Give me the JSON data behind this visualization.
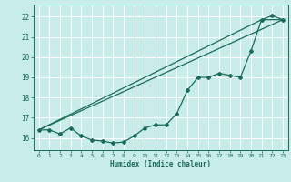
{
  "bg_color": "#c8ece9",
  "grid_color": "#ffffff",
  "line_color": "#1a6b5a",
  "xlabel": "Humidex (Indice chaleur)",
  "xlim": [
    -0.5,
    23.5
  ],
  "ylim": [
    15.4,
    22.6
  ],
  "yticks": [
    16,
    17,
    18,
    19,
    20,
    21,
    22
  ],
  "xticks": [
    0,
    1,
    2,
    3,
    4,
    5,
    6,
    7,
    8,
    9,
    10,
    11,
    12,
    13,
    14,
    15,
    16,
    17,
    18,
    19,
    20,
    21,
    22,
    23
  ],
  "line1_x": [
    0,
    1,
    2,
    3,
    4,
    5,
    6,
    7,
    8,
    9,
    10,
    11,
    12,
    13,
    14,
    15,
    16,
    17,
    18,
    19,
    20,
    21,
    22,
    23
  ],
  "line1_y": [
    16.4,
    16.4,
    16.2,
    16.5,
    16.1,
    15.9,
    15.85,
    15.75,
    15.8,
    16.1,
    16.5,
    16.65,
    16.65,
    17.2,
    18.35,
    19.0,
    19.0,
    19.2,
    19.1,
    19.0,
    20.3,
    21.85,
    22.05,
    21.85
  ],
  "line2_x": [
    0,
    23
  ],
  "line2_y": [
    16.4,
    21.85
  ],
  "line3_x": [
    0,
    21,
    23
  ],
  "line3_y": [
    16.4,
    21.85,
    21.85
  ]
}
